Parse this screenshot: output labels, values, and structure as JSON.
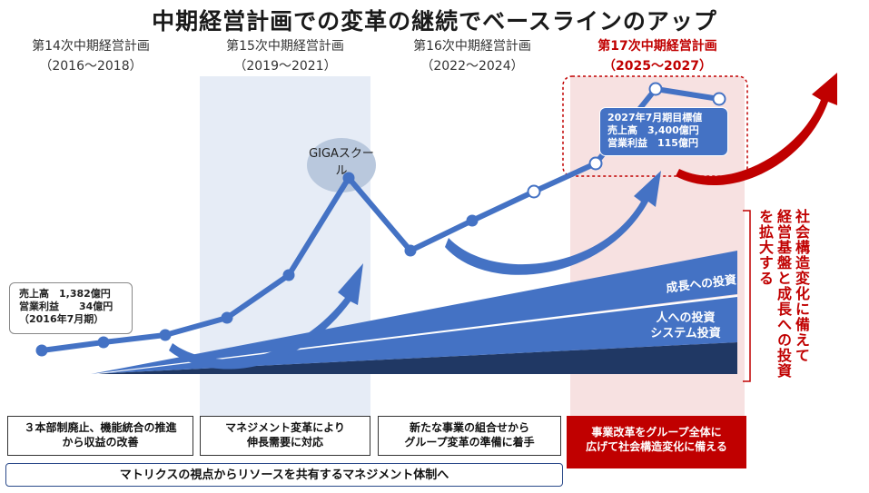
{
  "title": "中期経営計画での変革の継続でベースラインのアップ",
  "plans": [
    {
      "name": "第14次中期経営計画",
      "period": "（2016～2018）"
    },
    {
      "name": "第15次中期経営計画",
      "period": "（2019～2021）"
    },
    {
      "name": "第16次中期経営計画",
      "period": "（2022～2024）"
    },
    {
      "name": "第17次中期経営計画",
      "period": "（2025～2027）"
    }
  ],
  "start_box": {
    "line1": "売上高　1,382億円",
    "line2": "営業利益　　34億円",
    "line3": "（2016年7月期）"
  },
  "giga_label": "GIGAスクール",
  "target_box": {
    "line1": "2027年7月期目標値",
    "line2": "売上高　3,400億円",
    "line3": "営業利益　115億円"
  },
  "wedge_labels": {
    "growth": "成長への投資",
    "people": "人への投資",
    "system": "システム投資"
  },
  "side_text": {
    "col1": "社会構造変化に備えて",
    "col2": "経営基盤と成長への投資",
    "col3": "を拡大する"
  },
  "bottom_boxes": [
    {
      "line1": "３本部制廃止、機能統合の推進",
      "line2": "から収益の改善"
    },
    {
      "line1": "マネジメント変革により",
      "line2": "伸長需要に対応"
    },
    {
      "line1": "新たな事業の組合せから",
      "line2": "グループ変革の準備に着手"
    },
    {
      "line1": "事業改革をグループ全体に",
      "line2": "広げて社会構造変化に備える"
    }
  ],
  "bottom_bar": "マトリクスの視点からリソースを共有するマネジメント体制へ",
  "colors": {
    "blue_line": "#4472c4",
    "dark_navy": "#203864",
    "red": "#c00000",
    "band_blue": "#e6ecf6",
    "band_red": "#f7e1e1"
  }
}
